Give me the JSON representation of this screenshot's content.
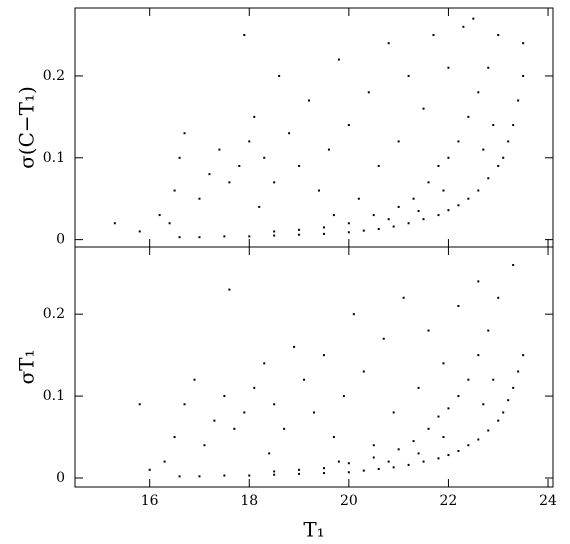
{
  "chart_data": [
    {
      "type": "scatter",
      "ylabel": "σ(C−T₁)",
      "color": "#000000",
      "xlim": [
        14.5,
        24.1
      ],
      "ylim": [
        -0.009,
        0.283
      ],
      "xticks": [
        16,
        18,
        20,
        22,
        24
      ],
      "yticks": [
        0,
        0.1,
        0.2
      ],
      "x": [
        16.6,
        17,
        17.5,
        18,
        18.5,
        19,
        19.5,
        20,
        20.3,
        20.6,
        20.9,
        21.2,
        21.5,
        21.8,
        22,
        22.2,
        22.4,
        22.6,
        22.8,
        23,
        23.1,
        23.2,
        23.3,
        23.4,
        23.5,
        23.5,
        20,
        20.5,
        21,
        21.3,
        21.6,
        21.8,
        22,
        22.2,
        22.4,
        22.6,
        22.8,
        23,
        22.9,
        22.7,
        21.9,
        21.4,
        20.8,
        19.5,
        19,
        18.5,
        16.4,
        16.5,
        16.6,
        16.7,
        17,
        17.2,
        17.4,
        17.6,
        17.8,
        18,
        18.1,
        18.3,
        18.5,
        18.6,
        18.8,
        19,
        19.2,
        19.4,
        19.6,
        19.8,
        20,
        20.2,
        20.4,
        20.6,
        20.8,
        21,
        21.2,
        21.5,
        21.7,
        22,
        22.3,
        16.2,
        15.8,
        15.3,
        17.9,
        18.2,
        19.7,
        22.5
      ],
      "values": [
        0.003,
        0.003,
        0.004,
        0.004,
        0.005,
        0.006,
        0.007,
        0.009,
        0.011,
        0.013,
        0.016,
        0.02,
        0.025,
        0.03,
        0.036,
        0.042,
        0.05,
        0.06,
        0.075,
        0.09,
        0.1,
        0.12,
        0.14,
        0.17,
        0.2,
        0.24,
        0.02,
        0.03,
        0.04,
        0.05,
        0.07,
        0.09,
        0.1,
        0.12,
        0.15,
        0.18,
        0.21,
        0.25,
        0.14,
        0.11,
        0.06,
        0.035,
        0.025,
        0.015,
        0.012,
        0.01,
        0.02,
        0.06,
        0.1,
        0.13,
        0.05,
        0.08,
        0.11,
        0.07,
        0.09,
        0.12,
        0.15,
        0.1,
        0.07,
        0.2,
        0.13,
        0.09,
        0.17,
        0.06,
        0.11,
        0.22,
        0.14,
        0.05,
        0.18,
        0.09,
        0.24,
        0.12,
        0.2,
        0.16,
        0.25,
        0.21,
        0.26,
        0.03,
        0.01,
        0.02,
        0.25,
        0.04,
        0.03,
        0.27
      ]
    },
    {
      "type": "scatter",
      "ylabel": "σT₁",
      "xlabel": "T₁",
      "color": "#000000",
      "xlim": [
        14.5,
        24.1
      ],
      "ylim": [
        -0.011,
        0.282
      ],
      "xticks": [
        16,
        18,
        20,
        22,
        24
      ],
      "yticks": [
        0,
        0.1,
        0.2
      ],
      "x": [
        16.6,
        17,
        17.5,
        18,
        18.5,
        19,
        19.5,
        20,
        20.3,
        20.6,
        20.9,
        21.2,
        21.5,
        21.8,
        22,
        22.2,
        22.4,
        22.6,
        22.8,
        23,
        23.1,
        23.2,
        23.3,
        23.4,
        23.5,
        20,
        20.5,
        21,
        21.3,
        21.6,
        21.8,
        22,
        22.2,
        22.4,
        22.6,
        22.8,
        23,
        22.9,
        22.7,
        21.9,
        21.4,
        20.8,
        19.5,
        19,
        18.5,
        16.3,
        16.5,
        16.7,
        16.9,
        17.1,
        17.3,
        17.5,
        17.7,
        17.9,
        18.1,
        18.3,
        18.5,
        18.7,
        18.9,
        19.1,
        19.3,
        19.5,
        19.7,
        19.9,
        20.1,
        20.3,
        20.5,
        20.7,
        20.9,
        21.1,
        21.4,
        21.6,
        21.9,
        22.2,
        22.6,
        15.8,
        16.0,
        17.6,
        18.4,
        19.8,
        23.3
      ],
      "values": [
        0.002,
        0.002,
        0.003,
        0.003,
        0.004,
        0.005,
        0.006,
        0.007,
        0.009,
        0.011,
        0.013,
        0.016,
        0.02,
        0.024,
        0.028,
        0.033,
        0.04,
        0.047,
        0.058,
        0.07,
        0.08,
        0.095,
        0.11,
        0.13,
        0.15,
        0.018,
        0.025,
        0.035,
        0.045,
        0.06,
        0.075,
        0.085,
        0.1,
        0.12,
        0.15,
        0.18,
        0.22,
        0.12,
        0.09,
        0.05,
        0.03,
        0.02,
        0.012,
        0.01,
        0.008,
        0.02,
        0.05,
        0.09,
        0.12,
        0.04,
        0.07,
        0.1,
        0.06,
        0.08,
        0.11,
        0.14,
        0.09,
        0.06,
        0.16,
        0.12,
        0.08,
        0.15,
        0.05,
        0.1,
        0.2,
        0.13,
        0.04,
        0.17,
        0.08,
        0.22,
        0.11,
        0.18,
        0.14,
        0.21,
        0.24,
        0.09,
        0.01,
        0.23,
        0.03,
        0.02,
        0.26
      ]
    }
  ]
}
